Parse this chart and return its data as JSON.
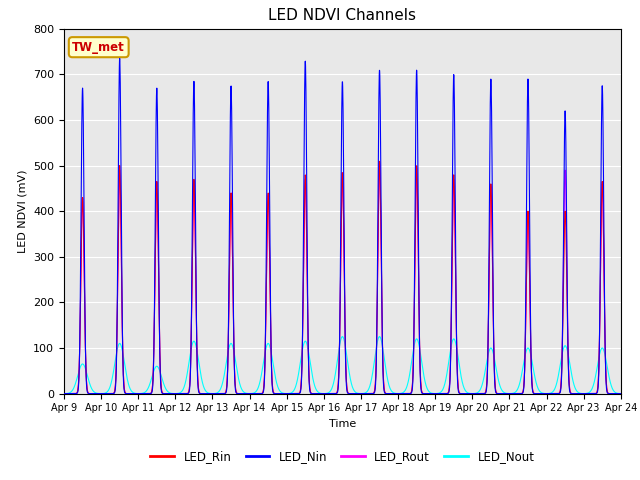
{
  "title": "LED NDVI Channels",
  "xlabel": "Time",
  "ylabel": "LED NDVI (mV)",
  "ylim": [
    0,
    800
  ],
  "background_color": "#e8e8e8",
  "annotation_text": "TW_met",
  "annotation_bg": "#ffffcc",
  "annotation_border": "#cc9900",
  "legend_entries": [
    "LED_Rin",
    "LED_Nin",
    "LED_Rout",
    "LED_Nout"
  ],
  "legend_colors": [
    "#ff0000",
    "#0000ff",
    "#ff00ff",
    "#00ffff"
  ],
  "line_colors": {
    "LED_Rin": "#ff0000",
    "LED_Nin": "#0000ff",
    "LED_Rout": "#ff00ff",
    "LED_Nout": "#00ffff"
  },
  "xtick_labels": [
    "Apr 9",
    "Apr 10",
    "Apr 11",
    "Apr 12",
    "Apr 13",
    "Apr 14",
    "Apr 15",
    "Apr 16",
    "Apr 17",
    "Apr 18",
    "Apr 19",
    "Apr 20",
    "Apr 21",
    "Apr 22",
    "Apr 23",
    "Apr 24"
  ],
  "num_cycles": 15,
  "cycle_peaks_Nin": [
    670,
    735,
    670,
    685,
    675,
    685,
    730,
    685,
    710,
    710,
    700,
    690,
    690,
    620,
    675
  ],
  "cycle_peaks_Rin": [
    430,
    500,
    465,
    470,
    440,
    440,
    480,
    485,
    510,
    500,
    480,
    460,
    400,
    400,
    465
  ],
  "cycle_peaks_Rout": [
    430,
    490,
    465,
    465,
    440,
    435,
    470,
    485,
    505,
    495,
    470,
    455,
    395,
    490,
    460
  ],
  "cycle_peaks_Nout": [
    65,
    110,
    60,
    115,
    110,
    110,
    115,
    125,
    125,
    120,
    120,
    100,
    100,
    105,
    100
  ]
}
